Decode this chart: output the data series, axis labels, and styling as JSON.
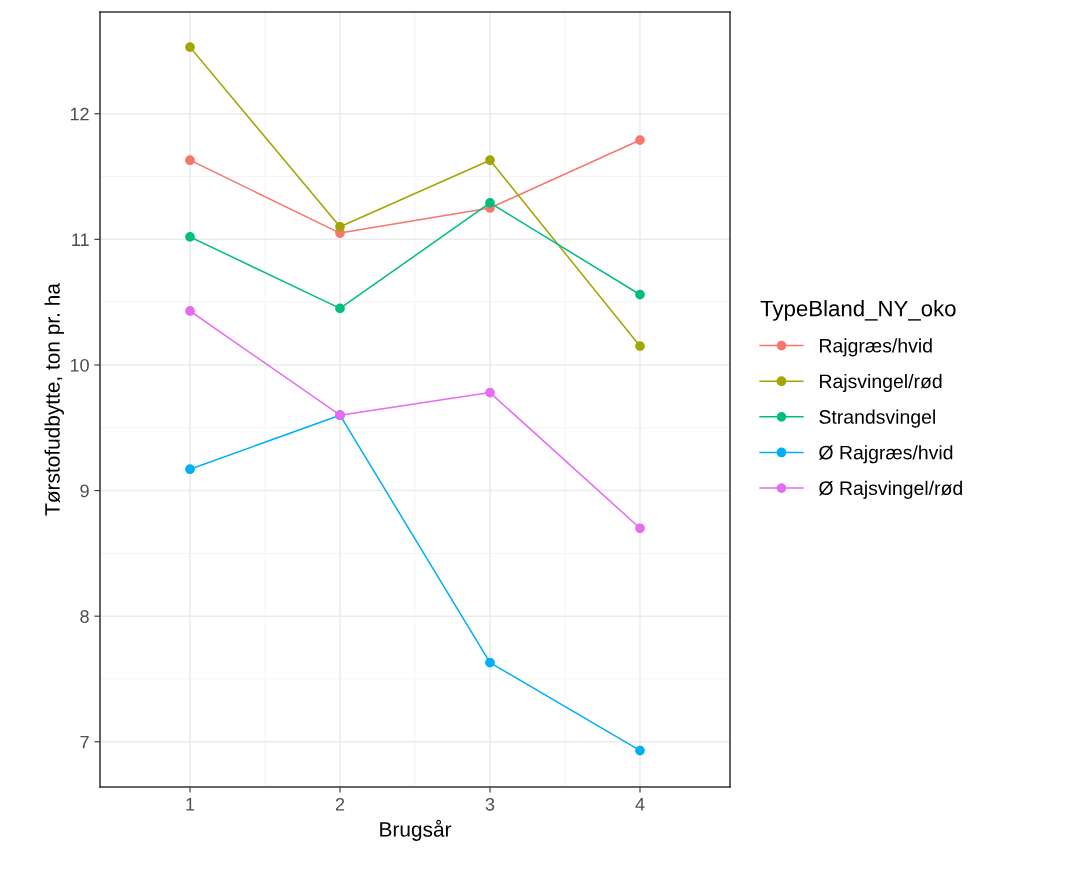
{
  "chart_data": {
    "type": "line",
    "xlabel": "Brugsår",
    "ylabel": "Tørstofudbytte, ton pr. ha",
    "legend_title": "TypeBland_NY_oko",
    "x": [
      1,
      2,
      3,
      4
    ],
    "series": [
      {
        "name": "Rajgræs/hvid",
        "color": "#f8766d",
        "values": [
          11.63,
          11.05,
          11.25,
          11.79
        ]
      },
      {
        "name": "Rajsvingel/rød",
        "color": "#a3a500",
        "values": [
          12.53,
          11.1,
          11.63,
          10.15
        ]
      },
      {
        "name": "Strandsvingel",
        "color": "#00bf7d",
        "values": [
          11.02,
          10.45,
          11.29,
          10.56
        ]
      },
      {
        "name": "Ø Rajgræs/hvid",
        "color": "#00b0f6",
        "values": [
          9.17,
          9.6,
          7.63,
          6.93
        ]
      },
      {
        "name": "Ø Rajsvingel/rød",
        "color": "#e76bf3",
        "values": [
          10.43,
          9.6,
          9.78,
          8.7
        ]
      }
    ],
    "xlim": [
      0.4,
      4.6
    ],
    "xticks": [
      1,
      2,
      3,
      4
    ],
    "ylim": [
      6.64,
      12.81
    ],
    "yticks": [
      7,
      8,
      9,
      10,
      11,
      12
    ],
    "grid": true,
    "legend": "right",
    "marker": "circle",
    "line_style": "solid"
  }
}
